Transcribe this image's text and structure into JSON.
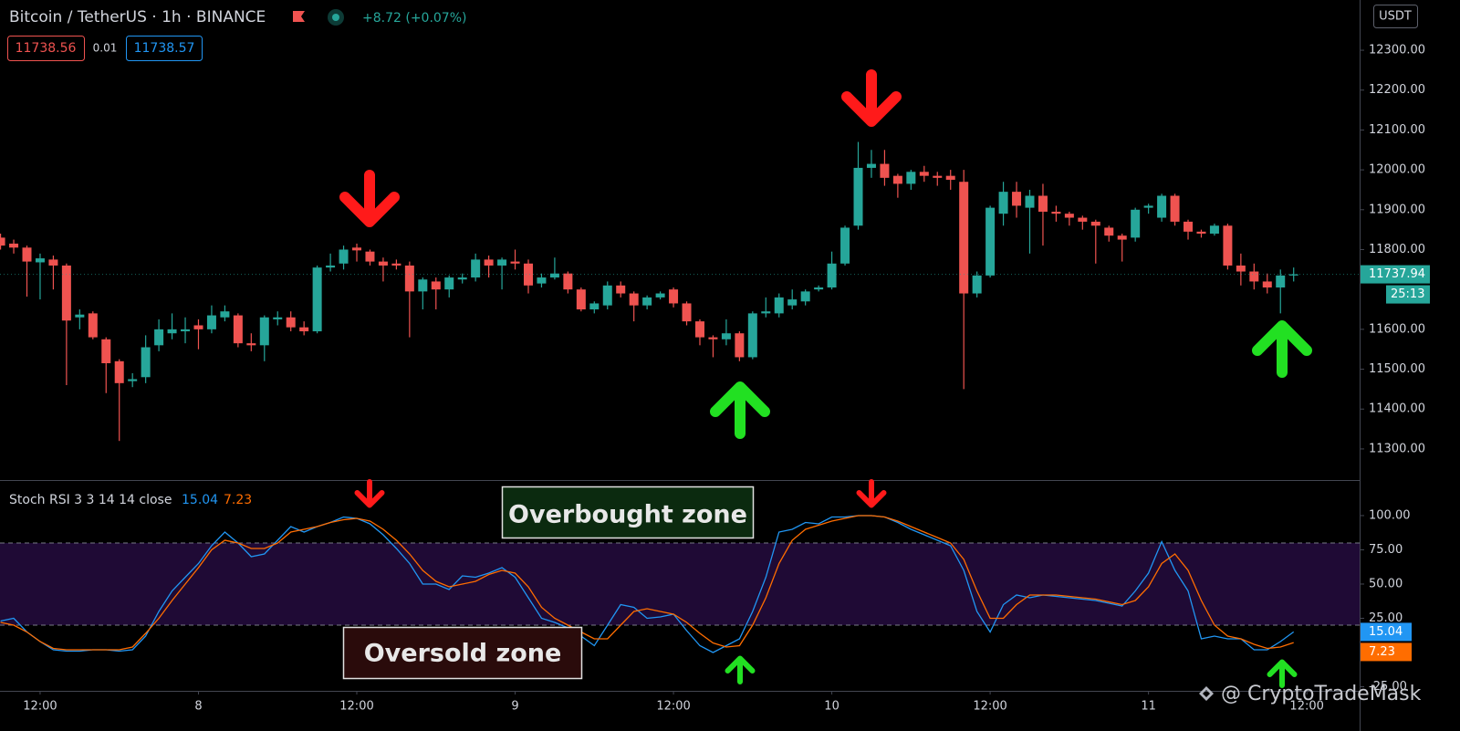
{
  "chart_data": [
    {
      "type": "candlestick",
      "title": "Bitcoin / TetherUS · 1h · BINANCE",
      "change_label": "+8.72 (+0.07%)",
      "bid": 11738.56,
      "spread": 0.01,
      "ask": 11738.57,
      "currency": "USDT",
      "last_price": 11737.94,
      "countdown": "25:13",
      "up_color": "#26a69a",
      "down_color": "#ef5350",
      "x": [
        0,
        1,
        2,
        3,
        4,
        5,
        6,
        7,
        8,
        9,
        10,
        11,
        12,
        13,
        14,
        15,
        16,
        17,
        18,
        19,
        20,
        21,
        22,
        23,
        24,
        25,
        26,
        27,
        28,
        29,
        30,
        31,
        32,
        33,
        34,
        35,
        36,
        37,
        38,
        39,
        40,
        41,
        42,
        43,
        44,
        45,
        46,
        47,
        48,
        49,
        50,
        51,
        52,
        53,
        54,
        55,
        56,
        57,
        58,
        59,
        60,
        61,
        62,
        63,
        64,
        65,
        66,
        67,
        68,
        69,
        70,
        71,
        72,
        73,
        74,
        75,
        76,
        77,
        78,
        79,
        80,
        81,
        82,
        83,
        84,
        85,
        86,
        87,
        88,
        89,
        90,
        91,
        92,
        93,
        94,
        95,
        96,
        97,
        98
      ],
      "open": [
        11830,
        11815,
        11805,
        11768,
        11775,
        11760,
        11630,
        11640,
        11575,
        11520,
        11470,
        11480,
        11560,
        11590,
        11595,
        11610,
        11600,
        11630,
        11635,
        11565,
        11560,
        11625,
        11630,
        11605,
        11595,
        11755,
        11765,
        11805,
        11795,
        11770,
        11765,
        11760,
        11695,
        11720,
        11700,
        11725,
        11730,
        11775,
        11760,
        11770,
        11765,
        11715,
        11730,
        11740,
        11700,
        11650,
        11660,
        11710,
        11690,
        11660,
        11680,
        11700,
        11665,
        11620,
        11580,
        11575,
        11590,
        11530,
        11640,
        11640,
        11660,
        11670,
        11700,
        11705,
        11765,
        11860,
        12005,
        12015,
        11985,
        11965,
        11995,
        11985,
        11985,
        11970,
        11690,
        11735,
        11890,
        11945,
        11905,
        11935,
        11895,
        11890,
        11880,
        11870,
        11855,
        11835,
        11830,
        11905,
        11880,
        11935,
        11870,
        11845,
        11840,
        11860,
        11760,
        11745,
        11720,
        11705,
        11735
      ],
      "high": [
        11840,
        11825,
        11810,
        11790,
        11785,
        11765,
        11650,
        11645,
        11580,
        11525,
        11490,
        11585,
        11625,
        11640,
        11630,
        11625,
        11660,
        11660,
        11640,
        11590,
        11635,
        11645,
        11645,
        11620,
        11760,
        11790,
        11810,
        11815,
        11800,
        11780,
        11775,
        11770,
        11730,
        11730,
        11735,
        11740,
        11790,
        11785,
        11780,
        11800,
        11775,
        11740,
        11780,
        11745,
        11705,
        11670,
        11720,
        11720,
        11695,
        11685,
        11695,
        11705,
        11670,
        11625,
        11585,
        11625,
        11595,
        11645,
        11680,
        11690,
        11700,
        11700,
        11710,
        11795,
        11860,
        12070,
        12050,
        12050,
        11990,
        12000,
        12010,
        11995,
        12000,
        12000,
        11745,
        11910,
        11970,
        11970,
        11950,
        11965,
        11910,
        11895,
        11885,
        11875,
        11860,
        11840,
        11905,
        11915,
        11940,
        11940,
        11875,
        11850,
        11865,
        11865,
        11790,
        11765,
        11740,
        11750,
        11755
      ],
      "low": [
        11800,
        11790,
        11682,
        11675,
        11700,
        11460,
        11600,
        11575,
        11440,
        11320,
        11455,
        11465,
        11545,
        11575,
        11565,
        11550,
        11590,
        11620,
        11555,
        11545,
        11520,
        11610,
        11595,
        11585,
        11590,
        11745,
        11750,
        11770,
        11760,
        11720,
        11750,
        11580,
        11650,
        11650,
        11680,
        11715,
        11720,
        11730,
        11700,
        11750,
        11690,
        11705,
        11725,
        11690,
        11645,
        11640,
        11650,
        11680,
        11620,
        11650,
        11675,
        11655,
        11610,
        11560,
        11530,
        11560,
        11520,
        11525,
        11630,
        11630,
        11650,
        11660,
        11695,
        11700,
        11760,
        11850,
        11980,
        11960,
        11930,
        11950,
        11970,
        11960,
        11950,
        11450,
        11680,
        11730,
        11860,
        11880,
        11790,
        11810,
        11870,
        11860,
        11850,
        11765,
        11820,
        11770,
        11820,
        11890,
        11870,
        11860,
        11825,
        11830,
        11835,
        11750,
        11710,
        11700,
        11690,
        11640,
        11720
      ],
      "close": [
        11810,
        11805,
        11770,
        11778,
        11760,
        11622,
        11637,
        11580,
        11515,
        11465,
        11475,
        11555,
        11600,
        11600,
        11600,
        11600,
        11635,
        11645,
        11565,
        11560,
        11630,
        11630,
        11605,
        11595,
        11755,
        11760,
        11800,
        11798,
        11770,
        11760,
        11760,
        11695,
        11725,
        11700,
        11730,
        11730,
        11775,
        11760,
        11775,
        11765,
        11710,
        11730,
        11740,
        11700,
        11650,
        11665,
        11710,
        11690,
        11660,
        11680,
        11690,
        11665,
        11620,
        11580,
        11575,
        11590,
        11530,
        11640,
        11645,
        11680,
        11675,
        11695,
        11705,
        11765,
        11855,
        12005,
        12015,
        11980,
        11965,
        11995,
        11985,
        11980,
        11975,
        11690,
        11735,
        11905,
        11945,
        11910,
        11935,
        11895,
        11890,
        11880,
        11870,
        11860,
        11835,
        11825,
        11900,
        11910,
        11935,
        11870,
        11845,
        11840,
        11860,
        11760,
        11745,
        11720,
        11705,
        11735,
        11738
      ],
      "xlim": [
        -0.04,
        103
      ],
      "xticks": [
        {
          "value": 3,
          "label": "12:00"
        },
        {
          "value": 15,
          "label": "8"
        },
        {
          "value": 27,
          "label": "12:00"
        },
        {
          "value": 39,
          "label": "9"
        },
        {
          "value": 51,
          "label": "12:00"
        },
        {
          "value": 63,
          "label": "10"
        },
        {
          "value": 75,
          "label": "12:00"
        },
        {
          "value": 87,
          "label": "11"
        },
        {
          "value": 99,
          "label": "12:00"
        }
      ],
      "ylim": [
        11222,
        12426
      ],
      "yticks": [
        {
          "value": 11300,
          "label": "11300.00"
        },
        {
          "value": 11400,
          "label": "11400.00"
        },
        {
          "value": 11500,
          "label": "11500.00"
        },
        {
          "value": 11600,
          "label": "11600.00"
        },
        {
          "value": 11800,
          "label": "11800.00"
        },
        {
          "value": 11900,
          "label": "11900.00"
        },
        {
          "value": 12000,
          "label": "12000.00"
        },
        {
          "value": 12100,
          "label": "12100.00"
        },
        {
          "value": 12200,
          "label": "12200.00"
        },
        {
          "value": 12300,
          "label": "12300.00"
        }
      ],
      "grid": false
    },
    {
      "type": "line",
      "title": "Stoch RSI 3 3 14 14 close",
      "series": [
        {
          "name": "K",
          "color": "#2196f3",
          "values": [
            23,
            25,
            15,
            8,
            2,
            1,
            1,
            2,
            2,
            1,
            2,
            12,
            30,
            45,
            55,
            65,
            78,
            88,
            80,
            70,
            72,
            82,
            92,
            88,
            92,
            95,
            99,
            98,
            94,
            86,
            76,
            65,
            50,
            50,
            46,
            56,
            55,
            58,
            62,
            55,
            40,
            25,
            22,
            18,
            12,
            5,
            20,
            35,
            33,
            25,
            26,
            28,
            16,
            5,
            0,
            5,
            10,
            30,
            55,
            88,
            90,
            95,
            94,
            99,
            99,
            100,
            100,
            99,
            95,
            90,
            86,
            82,
            78,
            60,
            30,
            15,
            35,
            42,
            40,
            42,
            41,
            40,
            39,
            38,
            36,
            34,
            45,
            58,
            81,
            60,
            45,
            10,
            12,
            10,
            10,
            2,
            2,
            8,
            15.04
          ]
        },
        {
          "name": "D",
          "color": "#ff6d00",
          "values": [
            22,
            20,
            15,
            8,
            3,
            2,
            2,
            2,
            2,
            2,
            4,
            14,
            25,
            38,
            50,
            62,
            75,
            82,
            80,
            76,
            76,
            80,
            88,
            90,
            92,
            95,
            97,
            98,
            96,
            90,
            82,
            72,
            60,
            52,
            48,
            50,
            52,
            57,
            60,
            58,
            48,
            33,
            25,
            20,
            15,
            10,
            10,
            20,
            30,
            32,
            30,
            28,
            22,
            14,
            7,
            4,
            5,
            20,
            40,
            65,
            82,
            90,
            93,
            96,
            98,
            100,
            100,
            99,
            96,
            92,
            88,
            84,
            80,
            68,
            45,
            25,
            25,
            35,
            42,
            42,
            42,
            41,
            40,
            39,
            37,
            35,
            38,
            48,
            65,
            72,
            60,
            38,
            20,
            12,
            10,
            6,
            3,
            4,
            7.23
          ]
        }
      ],
      "bands": [
        20,
        80
      ],
      "band_color": "#1f0a35",
      "ylim": [
        -28,
        125.3
      ],
      "yticks": [
        {
          "value": -25,
          "label": "-25.00"
        },
        {
          "value": 25,
          "label": "25.00"
        },
        {
          "value": 50,
          "label": "50.00"
        },
        {
          "value": 75,
          "label": "75.00"
        },
        {
          "value": 100,
          "label": "100.00"
        }
      ],
      "annotations": [
        "Overbought zone",
        "Oversold zone"
      ],
      "grid": false
    }
  ],
  "watermark": "@ CryptoTradeMask"
}
